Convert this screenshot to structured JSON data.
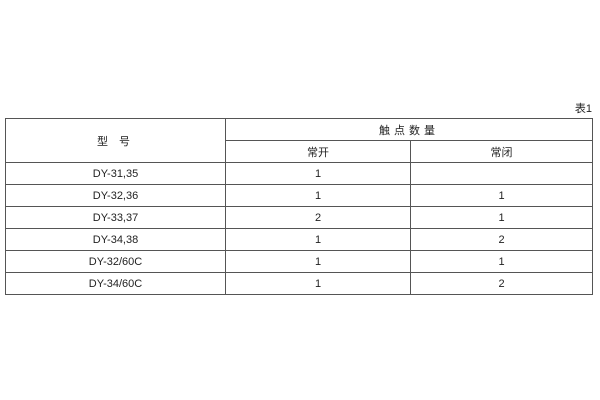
{
  "caption": "表1",
  "header": {
    "model": "型 号",
    "contacts": "触点数量",
    "normally_open": "常开",
    "normally_closed": "常闭"
  },
  "rows": [
    {
      "model": "DY-31,35",
      "no": "1",
      "nc": ""
    },
    {
      "model": "DY-32,36",
      "no": "1",
      "nc": "1"
    },
    {
      "model": "DY-33,37",
      "no": "2",
      "nc": "1"
    },
    {
      "model": "DY-34,38",
      "no": "1",
      "nc": "2"
    },
    {
      "model": "DY-32/60C",
      "no": "1",
      "nc": "1"
    },
    {
      "model": "DY-34/60C",
      "no": "1",
      "nc": "2"
    }
  ]
}
